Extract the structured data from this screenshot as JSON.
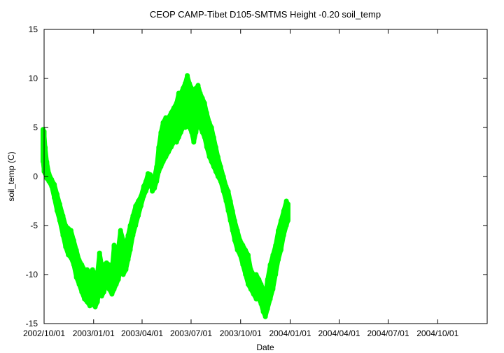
{
  "chart_data": {
    "type": "scatter",
    "title": "CEOP CAMP-Tibet D105-SMTMS Height -0.20 soil_temp",
    "xlabel": "Date",
    "ylabel": "soil_temp (C)",
    "xlim": [
      "2002-10-01",
      "2005-01-01"
    ],
    "ylim": [
      -15,
      15
    ],
    "y_ticks": [
      15,
      10,
      5,
      0,
      -5,
      -10,
      -15
    ],
    "y_tick_labels": [
      "15",
      "10",
      "5",
      "0",
      "-5",
      "-10",
      "-15"
    ],
    "x_ticks": [
      "2002-10-01",
      "2003-01-01",
      "2003-04-01",
      "2003-07-01",
      "2003-10-01",
      "2004-01-01",
      "2004-04-01",
      "2004-07-01",
      "2004-10-01"
    ],
    "x_tick_labels": [
      "2002/10/01",
      "2003/01/01",
      "2003/04/01",
      "2003/07/01",
      "2003/10/01",
      "2004/01/01",
      "2004/04/01",
      "2004/07/01",
      "2004/10/01"
    ],
    "grid": false,
    "legend": "none",
    "marker_color": "#00ff00",
    "series": [
      {
        "color": "#00ff00",
        "points": [
          {
            "x": "2002-09-29",
            "y_min": 1.5,
            "y_max": 4.8
          },
          {
            "x": "2002-10-01",
            "y_min": 0.5,
            "y_max": 4.6
          },
          {
            "x": "2002-10-03",
            "y_min": 0.3,
            "y_max": 3.0
          },
          {
            "x": "2002-10-06",
            "y_min": -0.2,
            "y_max": 1.5
          },
          {
            "x": "2002-10-10",
            "y_min": -0.5,
            "y_max": 0.3
          },
          {
            "x": "2002-10-15",
            "y_min": -1.0,
            "y_max": -0.3
          },
          {
            "x": "2002-10-20",
            "y_min": -2.2,
            "y_max": -0.8
          },
          {
            "x": "2002-10-25",
            "y_min": -3.5,
            "y_max": -1.8
          },
          {
            "x": "2002-10-30",
            "y_min": -4.5,
            "y_max": -2.8
          },
          {
            "x": "2002-11-05",
            "y_min": -6.0,
            "y_max": -4.0
          },
          {
            "x": "2002-11-10",
            "y_min": -7.2,
            "y_max": -5.0
          },
          {
            "x": "2002-11-15",
            "y_min": -8.0,
            "y_max": -5.3
          },
          {
            "x": "2002-11-20",
            "y_min": -8.3,
            "y_max": -5.5
          },
          {
            "x": "2002-11-25",
            "y_min": -9.0,
            "y_max": -6.5
          },
          {
            "x": "2002-11-30",
            "y_min": -10.3,
            "y_max": -7.5
          },
          {
            "x": "2002-12-05",
            "y_min": -11.0,
            "y_max": -8.5
          },
          {
            "x": "2002-12-10",
            "y_min": -11.8,
            "y_max": -9.0
          },
          {
            "x": "2002-12-15",
            "y_min": -12.5,
            "y_max": -9.5
          },
          {
            "x": "2002-12-20",
            "y_min": -12.8,
            "y_max": -9.5
          },
          {
            "x": "2002-12-25",
            "y_min": -13.2,
            "y_max": -9.8
          },
          {
            "x": "2002-12-30",
            "y_min": -13.0,
            "y_max": -9.5
          },
          {
            "x": "2003-01-04",
            "y_min": -13.3,
            "y_max": -10.0
          },
          {
            "x": "2003-01-08",
            "y_min": -12.8,
            "y_max": -9.8
          },
          {
            "x": "2003-01-12",
            "y_min": -11.5,
            "y_max": -7.8
          },
          {
            "x": "2003-01-16",
            "y_min": -12.2,
            "y_max": -9.0
          },
          {
            "x": "2003-01-20",
            "y_min": -11.8,
            "y_max": -9.0
          },
          {
            "x": "2003-01-25",
            "y_min": -11.0,
            "y_max": -8.8
          },
          {
            "x": "2003-01-30",
            "y_min": -11.5,
            "y_max": -9.0
          },
          {
            "x": "2003-02-04",
            "y_min": -12.0,
            "y_max": -9.5
          },
          {
            "x": "2003-02-08",
            "y_min": -11.5,
            "y_max": -7.0
          },
          {
            "x": "2003-02-12",
            "y_min": -11.0,
            "y_max": -8.0
          },
          {
            "x": "2003-02-16",
            "y_min": -10.5,
            "y_max": -7.2
          },
          {
            "x": "2003-02-20",
            "y_min": -9.5,
            "y_max": -5.5
          },
          {
            "x": "2003-02-25",
            "y_min": -10.0,
            "y_max": -6.5
          },
          {
            "x": "2003-03-02",
            "y_min": -9.5,
            "y_max": -7.0
          },
          {
            "x": "2003-03-06",
            "y_min": -8.5,
            "y_max": -6.0
          },
          {
            "x": "2003-03-10",
            "y_min": -7.5,
            "y_max": -5.0
          },
          {
            "x": "2003-03-15",
            "y_min": -6.0,
            "y_max": -4.0
          },
          {
            "x": "2003-03-20",
            "y_min": -5.0,
            "y_max": -3.0
          },
          {
            "x": "2003-03-25",
            "y_min": -4.0,
            "y_max": -2.5
          },
          {
            "x": "2003-03-30",
            "y_min": -3.0,
            "y_max": -2.0
          },
          {
            "x": "2003-04-04",
            "y_min": -2.0,
            "y_max": -1.0
          },
          {
            "x": "2003-04-08",
            "y_min": -1.5,
            "y_max": -0.5
          },
          {
            "x": "2003-04-12",
            "y_min": -1.0,
            "y_max": 0.3
          },
          {
            "x": "2003-04-16",
            "y_min": -0.5,
            "y_max": 0.2
          },
          {
            "x": "2003-04-20",
            "y_min": -1.5,
            "y_max": -0.3
          },
          {
            "x": "2003-04-24",
            "y_min": -1.2,
            "y_max": 0.0
          },
          {
            "x": "2003-04-28",
            "y_min": -0.5,
            "y_max": 1.0
          },
          {
            "x": "2003-05-02",
            "y_min": 0.5,
            "y_max": 3.0
          },
          {
            "x": "2003-05-06",
            "y_min": 1.0,
            "y_max": 4.5
          },
          {
            "x": "2003-05-10",
            "y_min": 1.5,
            "y_max": 5.5
          },
          {
            "x": "2003-05-15",
            "y_min": 2.0,
            "y_max": 6.0
          },
          {
            "x": "2003-05-20",
            "y_min": 2.5,
            "y_max": 6.0
          },
          {
            "x": "2003-05-25",
            "y_min": 3.0,
            "y_max": 6.5
          },
          {
            "x": "2003-05-30",
            "y_min": 3.5,
            "y_max": 7.0
          },
          {
            "x": "2003-06-04",
            "y_min": 3.5,
            "y_max": 7.5
          },
          {
            "x": "2003-06-08",
            "y_min": 4.0,
            "y_max": 8.5
          },
          {
            "x": "2003-06-12",
            "y_min": 4.5,
            "y_max": 8.5
          },
          {
            "x": "2003-06-16",
            "y_min": 5.0,
            "y_max": 9.0
          },
          {
            "x": "2003-06-20",
            "y_min": 5.0,
            "y_max": 9.5
          },
          {
            "x": "2003-06-24",
            "y_min": 5.5,
            "y_max": 10.3
          },
          {
            "x": "2003-06-28",
            "y_min": 5.0,
            "y_max": 9.5
          },
          {
            "x": "2003-07-02",
            "y_min": 4.5,
            "y_max": 9.0
          },
          {
            "x": "2003-07-06",
            "y_min": 3.5,
            "y_max": 8.0
          },
          {
            "x": "2003-07-10",
            "y_min": 4.5,
            "y_max": 9.0
          },
          {
            "x": "2003-07-14",
            "y_min": 5.5,
            "y_max": 9.3
          },
          {
            "x": "2003-07-18",
            "y_min": 5.0,
            "y_max": 8.5
          },
          {
            "x": "2003-07-22",
            "y_min": 4.5,
            "y_max": 8.0
          },
          {
            "x": "2003-07-26",
            "y_min": 4.0,
            "y_max": 7.5
          },
          {
            "x": "2003-07-30",
            "y_min": 3.0,
            "y_max": 6.5
          },
          {
            "x": "2003-08-04",
            "y_min": 2.0,
            "y_max": 5.5
          },
          {
            "x": "2003-08-08",
            "y_min": 1.5,
            "y_max": 5.0
          },
          {
            "x": "2003-08-12",
            "y_min": 1.0,
            "y_max": 4.0
          },
          {
            "x": "2003-08-16",
            "y_min": 0.5,
            "y_max": 3.0
          },
          {
            "x": "2003-08-20",
            "y_min": 0.0,
            "y_max": 2.0
          },
          {
            "x": "2003-08-25",
            "y_min": -0.5,
            "y_max": 1.0
          },
          {
            "x": "2003-08-30",
            "y_min": -1.5,
            "y_max": 0.0
          },
          {
            "x": "2003-09-04",
            "y_min": -2.5,
            "y_max": -1.0
          },
          {
            "x": "2003-09-08",
            "y_min": -3.5,
            "y_max": -1.5
          },
          {
            "x": "2003-09-12",
            "y_min": -4.5,
            "y_max": -2.5
          },
          {
            "x": "2003-09-16",
            "y_min": -5.5,
            "y_max": -3.5
          },
          {
            "x": "2003-09-20",
            "y_min": -6.5,
            "y_max": -4.5
          },
          {
            "x": "2003-09-25",
            "y_min": -7.5,
            "y_max": -5.5
          },
          {
            "x": "2003-09-30",
            "y_min": -8.0,
            "y_max": -6.5
          },
          {
            "x": "2003-10-05",
            "y_min": -9.0,
            "y_max": -7.0
          },
          {
            "x": "2003-10-10",
            "y_min": -10.0,
            "y_max": -7.5
          },
          {
            "x": "2003-10-15",
            "y_min": -11.0,
            "y_max": -8.0
          },
          {
            "x": "2003-10-20",
            "y_min": -11.5,
            "y_max": -9.5
          },
          {
            "x": "2003-10-25",
            "y_min": -12.0,
            "y_max": -10.0
          },
          {
            "x": "2003-10-30",
            "y_min": -12.5,
            "y_max": -10.0
          },
          {
            "x": "2003-11-04",
            "y_min": -12.5,
            "y_max": -10.5
          },
          {
            "x": "2003-11-08",
            "y_min": -13.0,
            "y_max": -11.0
          },
          {
            "x": "2003-11-12",
            "y_min": -13.8,
            "y_max": -11.5
          },
          {
            "x": "2003-11-16",
            "y_min": -14.3,
            "y_max": -12.0
          },
          {
            "x": "2003-11-20",
            "y_min": -13.5,
            "y_max": -10.5
          },
          {
            "x": "2003-11-25",
            "y_min": -12.5,
            "y_max": -9.0
          },
          {
            "x": "2003-11-30",
            "y_min": -11.5,
            "y_max": -8.0
          },
          {
            "x": "2003-12-05",
            "y_min": -10.0,
            "y_max": -7.0
          },
          {
            "x": "2003-12-10",
            "y_min": -8.5,
            "y_max": -5.5
          },
          {
            "x": "2003-12-15",
            "y_min": -7.5,
            "y_max": -4.5
          },
          {
            "x": "2003-12-20",
            "y_min": -6.0,
            "y_max": -3.5
          },
          {
            "x": "2003-12-25",
            "y_min": -5.0,
            "y_max": -2.5
          },
          {
            "x": "2003-12-28",
            "y_min": -4.5,
            "y_max": -2.8
          }
        ]
      }
    ]
  }
}
